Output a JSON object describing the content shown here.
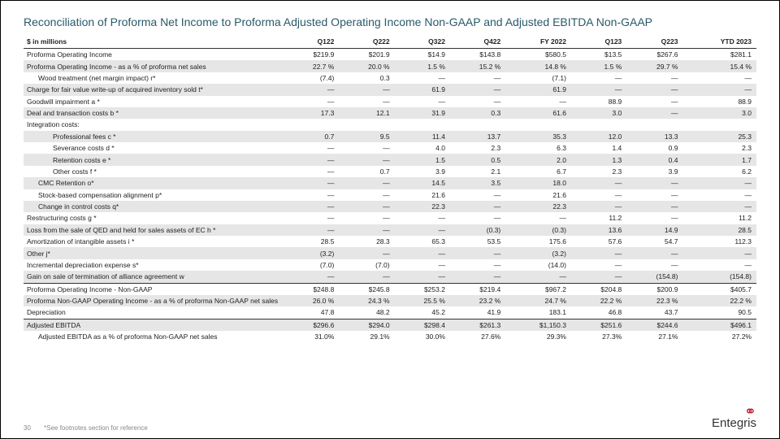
{
  "title": "Reconciliation of Proforma Net Income to Proforma Adjusted Operating Income Non-GAAP and Adjusted EBITDA Non-GAAP",
  "columns": [
    "$ in millions",
    "Q122",
    "Q222",
    "Q322",
    "Q422",
    "FY 2022",
    "Q123",
    "Q223",
    "YTD 2023"
  ],
  "page_number": "30",
  "footnote": "*See footnotes section for reference",
  "logo_text": "Entegris",
  "colors": {
    "title": "#2a5a6a",
    "shade": "#e6e6e6",
    "logo_red": "#b8202f",
    "text": "#222222"
  },
  "rows": [
    {
      "label": "Proforma Operating Income",
      "cells": [
        "$219.9",
        "$201.9",
        "$14.9",
        "$143.8",
        "$580.5",
        "$13.5",
        "$267.6",
        "$281.1"
      ]
    },
    {
      "label": "Proforma Operating Income - as a % of proforma net sales",
      "cells": [
        "22.7 %",
        "20.0 %",
        "1.5 %",
        "15.2 %",
        "14.8 %",
        "1.5 %",
        "29.7 %",
        "15.4 %"
      ],
      "shade": true
    },
    {
      "label": "Wood treatment (net margin impact) r*",
      "cells": [
        "(7.4)",
        "0.3",
        "—",
        "—",
        "(7.1)",
        "—",
        "—",
        "—"
      ],
      "indent": 1
    },
    {
      "label": "Charge for fair value write-up of acquired inventory sold t*",
      "cells": [
        "—",
        "—",
        "61.9",
        "—",
        "61.9",
        "—",
        "—",
        "—"
      ],
      "shade": true
    },
    {
      "label": "Goodwill impairment a *",
      "cells": [
        "—",
        "—",
        "—",
        "—",
        "—",
        "88.9",
        "—",
        "88.9"
      ]
    },
    {
      "label": "Deal and transaction costs b *",
      "cells": [
        "17.3",
        "12.1",
        "31.9",
        "0.3",
        "61.6",
        "3.0",
        "—",
        "3.0"
      ],
      "shade": true
    },
    {
      "label": "Integration costs:",
      "cells": [
        "",
        "",
        "",
        "",
        "",
        "",
        "",
        ""
      ]
    },
    {
      "label": "Professional fees c *",
      "cells": [
        "0.7",
        "9.5",
        "11.4",
        "13.7",
        "35.3",
        "12.0",
        "13.3",
        "25.3"
      ],
      "indent": 2,
      "shade": true
    },
    {
      "label": "Severance costs d *",
      "cells": [
        "—",
        "—",
        "4.0",
        "2.3",
        "6.3",
        "1.4",
        "0.9",
        "2.3"
      ],
      "indent": 2
    },
    {
      "label": "Retention costs e *",
      "cells": [
        "—",
        "—",
        "1.5",
        "0.5",
        "2.0",
        "1.3",
        "0.4",
        "1.7"
      ],
      "indent": 2,
      "shade": true
    },
    {
      "label": "Other costs f *",
      "cells": [
        "—",
        "0.7",
        "3.9",
        "2.1",
        "6.7",
        "2.3",
        "3.9",
        "6.2"
      ],
      "indent": 2
    },
    {
      "label": "CMC Retention o*",
      "cells": [
        "—",
        "—",
        "14.5",
        "3.5",
        "18.0",
        "—",
        "—",
        "—"
      ],
      "indent": 1,
      "shade": true
    },
    {
      "label": "Stock-based compensation alignment p*",
      "cells": [
        "—",
        "—",
        "21.6",
        "—",
        "21.6",
        "—",
        "—",
        "—"
      ],
      "indent": 1
    },
    {
      "label": "Change in control costs q*",
      "cells": [
        "—",
        "—",
        "22.3",
        "—",
        "22.3",
        "—",
        "—",
        "—"
      ],
      "indent": 1,
      "shade": true
    },
    {
      "label": "Restructuring costs g *",
      "cells": [
        "—",
        "—",
        "—",
        "—",
        "—",
        "11.2",
        "—",
        "11.2"
      ]
    },
    {
      "label": "Loss from the sale of QED and held for sales assets of EC h *",
      "cells": [
        "—",
        "—",
        "—",
        "(0.3)",
        "(0.3)",
        "13.6",
        "14.9",
        "28.5"
      ],
      "shade": true
    },
    {
      "label": "Amortization of intangible assets i *",
      "cells": [
        "28.5",
        "28.3",
        "65.3",
        "53.5",
        "175.6",
        "57.6",
        "54.7",
        "112.3"
      ]
    },
    {
      "label": "Other j*",
      "cells": [
        "(3.2)",
        "—",
        "—",
        "—",
        "(3.2)",
        "—",
        "—",
        "—"
      ],
      "shade": true
    },
    {
      "label": "Incremental depreciation expense s*",
      "cells": [
        "(7.0)",
        "(7.0)",
        "—",
        "—",
        "(14.0)",
        "—",
        "—",
        "—"
      ]
    },
    {
      "label": "Gain on sale of termination of alliance agreement w",
      "cells": [
        "—",
        "—",
        "—",
        "—",
        "—",
        "—",
        "(154.8)",
        "(154.8)"
      ],
      "shade": true
    },
    {
      "label": "Proforma Operating Income - Non-GAAP",
      "cells": [
        "$248.8",
        "$245.8",
        "$253.2",
        "$219.4",
        "$967.2",
        "$204.8",
        "$200.9",
        "$405.7"
      ],
      "border": true
    },
    {
      "label": "Proforma Non-GAAP Operating Income - as a % of proforma Non-GAAP net sales",
      "cells": [
        "26.0 %",
        "24.3 %",
        "25.5 %",
        "23.2 %",
        "24.7 %",
        "22.2 %",
        "22.3 %",
        "22.2 %"
      ],
      "shade": true
    },
    {
      "label": "Depreciation",
      "cells": [
        "47.8",
        "48.2",
        "45.2",
        "41.9",
        "183.1",
        "46.8",
        "43.7",
        "90.5"
      ]
    },
    {
      "label": "Adjusted EBITDA",
      "cells": [
        "$296.6",
        "$294.0",
        "$298.4",
        "$261.3",
        "$1,150.3",
        "$251.6",
        "$244.6",
        "$496.1"
      ],
      "shade": true,
      "border": true
    },
    {
      "label": "Adjusted EBITDA as a % of proforma Non-GAAP net sales",
      "cells": [
        "31.0%",
        "29.1%",
        "30.0%",
        "27.6%",
        "29.3%",
        "27.3%",
        "27.1%",
        "27.2%"
      ],
      "indent": 1
    }
  ]
}
